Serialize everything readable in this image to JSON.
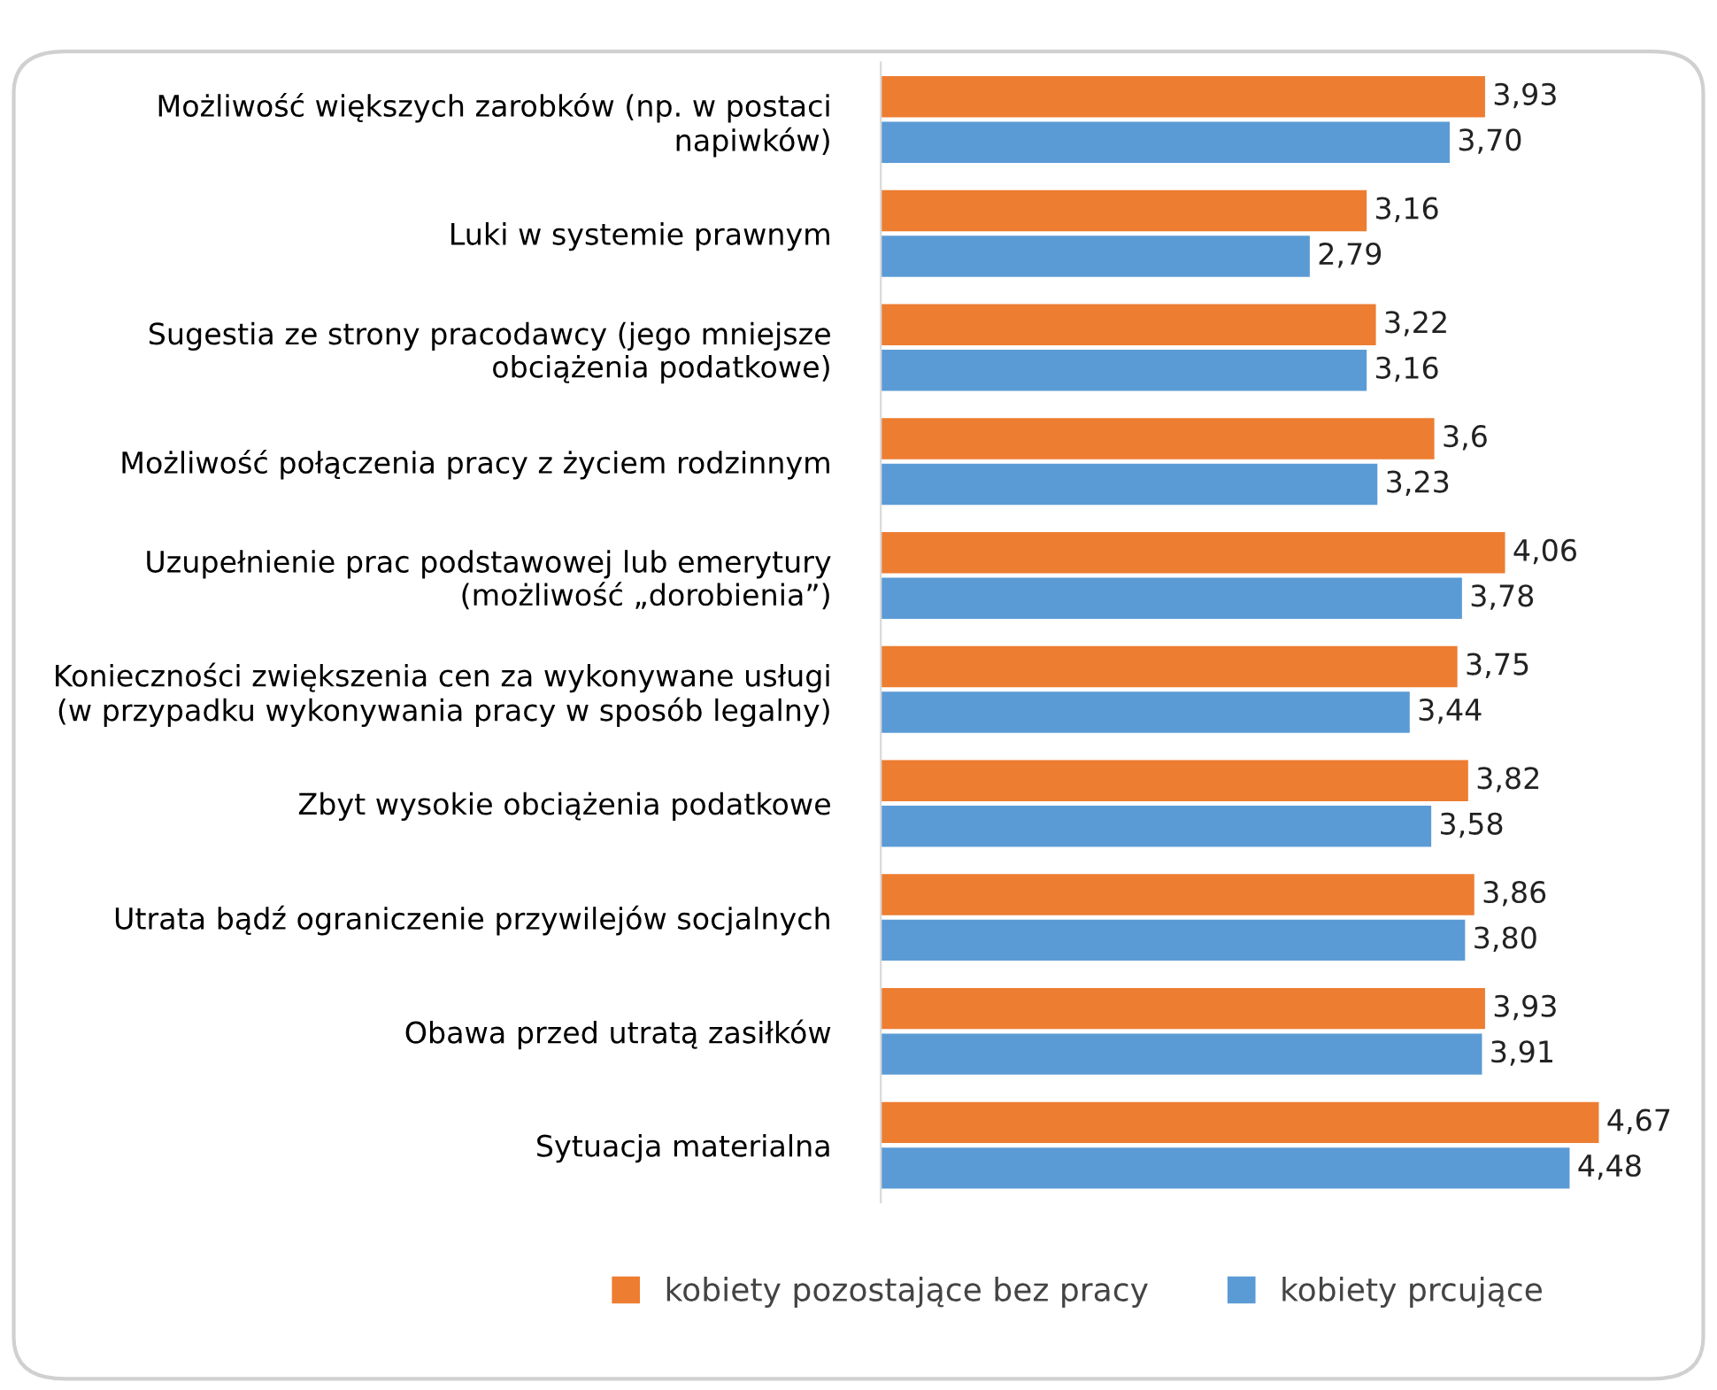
{
  "chart_data": {
    "type": "bar",
    "orientation": "horizontal",
    "legend": "bottom",
    "categories": [
      "Możliwość większych zarobków (np. w postaci\nnapiwków)",
      "Luki w systemie prawnym",
      "Sugestia ze strony pracodawcy (jego mniejsze\nobciążenia podatkowe)",
      "Możliwość połączenia pracy z życiem rodzinnym",
      "Uzupełnienie prac podstawowej lub emerytury\n(możliwość „dorobienia”)",
      "Konieczności zwiększenia cen za wykonywane usługi\n(w przypadku wykonywania pracy w sposób legalny)",
      "Zbyt wysokie obciążenia podatkowe",
      "Utrata bądź ograniczenie przywilejów socjalnych",
      "Obawa przed utratą zasiłków",
      "Sytuacja materialna"
    ],
    "series": [
      {
        "name": "kobiety pozostające bez pracy",
        "color": "#ed7d31",
        "values": [
          3.93,
          3.16,
          3.22,
          3.6,
          4.06,
          3.75,
          3.82,
          3.86,
          3.93,
          4.67
        ],
        "value_labels": [
          "3,93",
          "3,16",
          "3,22",
          "3,6",
          "4,06",
          "3,75",
          "3,82",
          "3,86",
          "3,93",
          "4,67"
        ]
      },
      {
        "name": "kobiety prcujące",
        "color": "#5b9bd5",
        "values": [
          3.7,
          2.79,
          3.16,
          3.23,
          3.78,
          3.44,
          3.58,
          3.8,
          3.91,
          4.48
        ],
        "value_labels": [
          "3,70",
          "2,79",
          "3,16",
          "3,23",
          "3,78",
          "3,44",
          "3,58",
          "3,80",
          "3,91",
          "4,48"
        ]
      }
    ]
  }
}
